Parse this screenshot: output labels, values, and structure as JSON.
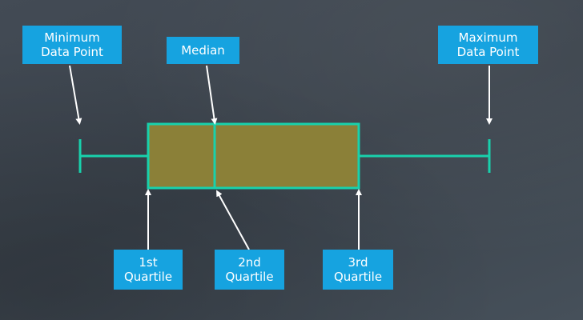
{
  "labels": {
    "minimum": {
      "line1": "Minimum",
      "line2": "Data Point"
    },
    "median": {
      "line1": "Median"
    },
    "maximum": {
      "line1": "Maximum",
      "line2": "Data Point"
    },
    "q1": {
      "line1": "1st",
      "line2": "Quartile"
    },
    "q2": {
      "line1": "2nd",
      "line2": "Quartile"
    },
    "q3": {
      "line1": "3rd",
      "line2": "Quartile"
    }
  },
  "colors": {
    "label_bg": "#16a3e0",
    "box_fill": "#8b8038",
    "box_stroke": "#18d1ac",
    "arrow": "#ffffff"
  }
}
